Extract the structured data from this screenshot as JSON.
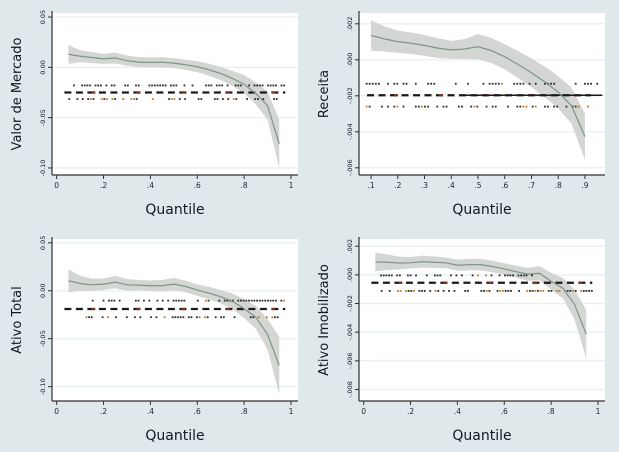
{
  "figure": {
    "background": "#dfe9ec",
    "plot_bg": "#ffffff",
    "grid_color": "#e7f1f0",
    "axis_color": "#303030",
    "text_color": "#16161e",
    "tick_text_color": "#1a2430",
    "line_color": "#7d9588",
    "band_color": "#d3d6d3",
    "dash_color": "#1a1a1a",
    "dash_accent_color": "#83301f",
    "dot_color": "#2b2b2b",
    "accent_dot_color": "#c07828",
    "xlabel": "Quantile"
  },
  "chart_data": [
    {
      "type": "line",
      "ylabel": "Valor de Mercado",
      "xlabel": "Quantile",
      "legend_position": "none",
      "grid": true,
      "xlim": [
        -0.02,
        1.03
      ],
      "ylim": [
        -0.107,
        0.054
      ],
      "xticks": {
        "values": [
          0,
          0.2,
          0.4,
          0.6,
          0.8,
          1
        ],
        "labels": [
          "0",
          ".2",
          ".4",
          ".6",
          ".8",
          "1"
        ]
      },
      "yticks": {
        "values": [
          0.05,
          0.0,
          -0.05,
          -0.1
        ],
        "labels": [
          "0.05",
          "0.00",
          "-0.05",
          "-0.10"
        ]
      },
      "x": [
        0.05,
        0.1,
        0.15,
        0.2,
        0.25,
        0.3,
        0.35,
        0.4,
        0.45,
        0.5,
        0.55,
        0.6,
        0.65,
        0.7,
        0.75,
        0.8,
        0.85,
        0.9,
        0.95
      ],
      "line": [
        0.013,
        0.011,
        0.0098,
        0.0084,
        0.0093,
        0.0066,
        0.0052,
        0.0049,
        0.0051,
        0.0042,
        0.0026,
        0.0006,
        -0.0024,
        -0.0061,
        -0.011,
        -0.0168,
        -0.026,
        -0.038,
        -0.076
      ],
      "band_top": [
        0.0225,
        0.017,
        0.0153,
        0.0134,
        0.0148,
        0.0116,
        0.0102,
        0.0099,
        0.0101,
        0.0092,
        0.0076,
        0.0061,
        0.0036,
        0.0004,
        -0.0035,
        -0.0078,
        -0.015,
        -0.024,
        -0.052
      ],
      "band_bottom": [
        0.0035,
        0.005,
        0.0043,
        0.0034,
        0.0038,
        0.0016,
        0.0002,
        -0.0001,
        0.0001,
        -0.0008,
        -0.0024,
        -0.0049,
        -0.0084,
        -0.0126,
        -0.0185,
        -0.0258,
        -0.037,
        -0.052,
        -0.1
      ],
      "ols_dashed_y": -0.025,
      "solid_segment": null,
      "dot_rows": [
        {
          "y": -0.018,
          "span": [
            0.07,
            0.97
          ],
          "density": 0.55,
          "accent_prob": 0.04,
          "ramp": false
        },
        {
          "y": -0.0315,
          "span": [
            0.05,
            0.97
          ],
          "density": 0.5,
          "accent_prob": 0.28,
          "ramp": false
        }
      ]
    },
    {
      "type": "line",
      "ylabel": "Receita",
      "xlabel": "Quantile",
      "legend_position": "none",
      "grid": true,
      "xlim": [
        0.055,
        0.975
      ],
      "ylim": [
        -0.0064,
        0.0026
      ],
      "xticks": {
        "values": [
          0.1,
          0.2,
          0.3,
          0.4,
          0.5,
          0.6,
          0.7,
          0.8,
          0.9
        ],
        "labels": [
          ".1",
          ".2",
          ".3",
          ".4",
          ".5",
          ".6",
          ".7",
          ".8",
          ".9"
        ]
      },
      "yticks": {
        "values": [
          0.002,
          0.0,
          -0.002,
          -0.004,
          -0.006
        ],
        "labels": [
          ".002",
          ".000",
          "-.002",
          "-.004",
          "-.006"
        ]
      },
      "x": [
        0.1,
        0.15,
        0.2,
        0.25,
        0.3,
        0.35,
        0.4,
        0.45,
        0.5,
        0.55,
        0.6,
        0.65,
        0.7,
        0.75,
        0.8,
        0.85,
        0.9
      ],
      "line": [
        0.00135,
        0.00116,
        0.00101,
        0.00092,
        0.0008,
        0.00065,
        0.00055,
        0.0006,
        0.00073,
        0.00051,
        0.00017,
        -0.00026,
        -0.00072,
        -0.00123,
        -0.0018,
        -0.00256,
        -0.00427
      ],
      "band_top": [
        0.0022,
        0.00186,
        0.00163,
        0.00152,
        0.00138,
        0.0012,
        0.00105,
        0.00115,
        0.00143,
        0.00121,
        0.00087,
        0.00049,
        8e-05,
        -0.00038,
        -0.0009,
        -0.00156,
        -0.00299
      ],
      "band_bottom": [
        0.0005,
        0.00046,
        0.00039,
        0.00032,
        0.00022,
        0.0001,
        5e-05,
        5e-05,
        3e-05,
        -0.00019,
        -0.00053,
        -0.00101,
        -0.00152,
        -0.00208,
        -0.0027,
        -0.00356,
        -0.00555
      ],
      "ols_dashed_y": -0.00197,
      "solid_segment": [
        0.45,
        0.965
      ],
      "dot_rows": [
        {
          "y": -0.00133,
          "span": [
            0.08,
            0.95
          ],
          "density": 0.55,
          "accent_prob": 0.08,
          "ramp": false
        },
        {
          "y": -0.0026,
          "span": [
            0.08,
            0.95
          ],
          "density": 0.55,
          "accent_prob": 0.22,
          "ramp": false
        }
      ]
    },
    {
      "type": "line",
      "ylabel": "Ativo Total",
      "xlabel": "Quantile",
      "legend_position": "none",
      "grid": true,
      "xlim": [
        -0.02,
        1.03
      ],
      "ylim": [
        -0.115,
        0.054
      ],
      "xticks": {
        "values": [
          0,
          0.2,
          0.4,
          0.6,
          0.8,
          1
        ],
        "labels": [
          "0",
          ".2",
          ".4",
          ".6",
          ".8",
          "1"
        ]
      },
      "yticks": {
        "values": [
          0.05,
          0.0,
          -0.05,
          -0.1
        ],
        "labels": [
          "0.05",
          "0.00",
          "-0.05",
          "-0.10"
        ]
      },
      "x": [
        0.05,
        0.1,
        0.15,
        0.2,
        0.25,
        0.3,
        0.35,
        0.4,
        0.45,
        0.5,
        0.55,
        0.6,
        0.65,
        0.7,
        0.75,
        0.8,
        0.85,
        0.9,
        0.95
      ],
      "line": [
        0.0105,
        0.0076,
        0.0062,
        0.0069,
        0.009,
        0.0062,
        0.0059,
        0.0052,
        0.0052,
        0.0069,
        0.0045,
        0.0007,
        -0.0024,
        -0.0062,
        -0.011,
        -0.0186,
        -0.0276,
        -0.0455,
        -0.078
      ],
      "band_top": [
        0.0225,
        0.0156,
        0.0127,
        0.0129,
        0.0155,
        0.0122,
        0.0114,
        0.0107,
        0.0112,
        0.0134,
        0.0105,
        0.0067,
        0.0041,
        0.0008,
        -0.003,
        -0.0086,
        -0.0156,
        -0.0295,
        -0.048
      ],
      "band_bottom": [
        -0.0015,
        -0.0004,
        -0.0003,
        0.0009,
        0.0025,
        0.0002,
        0.0004,
        -0.0003,
        -0.0008,
        0.0004,
        -0.0015,
        -0.0053,
        -0.0089,
        -0.0132,
        -0.019,
        -0.0286,
        -0.0396,
        -0.0615,
        -0.108
      ],
      "ols_dashed_y": -0.019,
      "solid_segment": null,
      "dot_rows": [
        {
          "y": -0.0103,
          "span": [
            0.15,
            0.97
          ],
          "density": 0.5,
          "accent_prob": 0.05,
          "ramp": true
        },
        {
          "y": -0.0276,
          "span": [
            0.1,
            0.95
          ],
          "density": 0.5,
          "accent_prob": 0.25,
          "ramp": false
        }
      ]
    },
    {
      "type": "line",
      "ylabel": "Ativo Imobilizado",
      "xlabel": "Quantile",
      "legend_position": "none",
      "grid": true,
      "xlim": [
        -0.02,
        1.03
      ],
      "ylim": [
        -0.0088,
        0.0025
      ],
      "xticks": {
        "values": [
          0,
          0.2,
          0.4,
          0.6,
          0.8,
          1
        ],
        "labels": [
          "0",
          ".2",
          ".4",
          ".6",
          ".8",
          "1"
        ]
      },
      "yticks": {
        "values": [
          0.002,
          0.0,
          -0.002,
          -0.004,
          -0.006,
          -0.008
        ],
        "labels": [
          ".002",
          ".000",
          "-.002",
          "-.004",
          "-.006",
          "-.008"
        ]
      },
      "x": [
        0.05,
        0.1,
        0.15,
        0.2,
        0.25,
        0.3,
        0.35,
        0.4,
        0.45,
        0.5,
        0.55,
        0.6,
        0.65,
        0.7,
        0.75,
        0.8,
        0.85,
        0.9,
        0.95
      ],
      "line": [
        0.0009,
        0.00088,
        0.00082,
        0.00084,
        0.00092,
        0.00088,
        0.00084,
        0.00067,
        0.00071,
        0.00071,
        0.00058,
        0.00041,
        0.00022,
        4e-05,
        0.00011,
        -0.00045,
        -0.00093,
        -0.00206,
        -0.00415
      ],
      "band_top": [
        0.00155,
        0.00143,
        0.00127,
        0.00124,
        0.00134,
        0.00128,
        0.00122,
        0.00105,
        0.00111,
        0.00111,
        0.00098,
        0.00081,
        0.00064,
        0.00049,
        0.00061,
        0.00015,
        -0.00023,
        -0.00101,
        -0.00245
      ],
      "band_bottom": [
        0.00025,
        0.00033,
        0.00037,
        0.00044,
        0.0005,
        0.00048,
        0.00046,
        0.00029,
        0.00031,
        0.00031,
        0.00018,
        1e-05,
        -0.0002,
        -0.00041,
        -0.00039,
        -0.00105,
        -0.00163,
        -0.00311,
        -0.00585
      ],
      "ols_dashed_y": -0.00055,
      "solid_segment": null,
      "dot_rows": [
        {
          "y": -4e-05,
          "span": [
            0.07,
            0.72
          ],
          "density": 0.6,
          "accent_prob": 0.1,
          "ramp": false
        },
        {
          "y": -0.00112,
          "span": [
            0.05,
            0.97
          ],
          "density": 0.45,
          "accent_prob": 0.35,
          "ramp": true
        }
      ]
    }
  ]
}
